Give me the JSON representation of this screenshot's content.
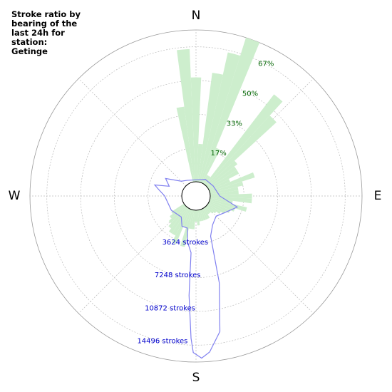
{
  "chart_data": {
    "type": "polar",
    "title_lines": [
      "Stroke ratio by",
      "bearing of the",
      "last 24h for",
      "station:",
      "Getinge"
    ],
    "compass": [
      "N",
      "E",
      "S",
      "W"
    ],
    "ratio_ticks": [
      "17%",
      "33%",
      "50%",
      "67%"
    ],
    "stroke_ticks": [
      "3624 strokes",
      "7248 strokes",
      "10872 strokes",
      "14496 strokes"
    ],
    "colors": {
      "ratio_bars": "#cdeecd",
      "stroke_line": "#8080f0",
      "ratio_tick_text": "#006400",
      "stroke_tick_text": "#0000cc",
      "grid": "#bbbbbb"
    },
    "series": [
      {
        "kind": "bars",
        "unit": "percent",
        "bearing_step_deg": 5,
        "bearings": [
          -10,
          -5,
          0,
          5,
          10,
          15,
          20,
          25,
          30,
          35,
          40,
          45,
          50,
          55,
          60,
          65,
          70,
          75,
          80,
          85,
          90,
          95,
          100,
          105,
          110,
          115,
          120,
          125,
          130,
          135,
          140,
          145,
          150,
          155,
          160,
          165,
          170,
          175,
          180,
          185,
          190,
          195,
          200,
          205,
          210,
          215,
          220,
          225,
          230,
          235
        ],
        "values": [
          40,
          70,
          55,
          20,
          58,
          70,
          80,
          20,
          5,
          5,
          60,
          50,
          20,
          18,
          18,
          12,
          25,
          18,
          15,
          15,
          22,
          22,
          12,
          20,
          14,
          12,
          10,
          8,
          6,
          5,
          4,
          4,
          6,
          6,
          6,
          6,
          6,
          8,
          6,
          10,
          10,
          20,
          10,
          20,
          16,
          16,
          14,
          12,
          10,
          8
        ]
      },
      {
        "kind": "line",
        "unit": "strokes",
        "points": [
          [
            0,
            200
          ],
          [
            30,
            500
          ],
          [
            60,
            600
          ],
          [
            90,
            1000
          ],
          [
            105,
            3000
          ],
          [
            120,
            2000
          ],
          [
            135,
            1500
          ],
          [
            150,
            2000
          ],
          [
            160,
            3000
          ],
          [
            165,
            8000
          ],
          [
            170,
            13000
          ],
          [
            175,
            15000
          ],
          [
            178,
            15600
          ],
          [
            181,
            15000
          ],
          [
            182,
            13500
          ],
          [
            184,
            9000
          ],
          [
            185,
            4500
          ],
          [
            190,
            3500
          ],
          [
            195,
            2000
          ],
          [
            205,
            2000
          ],
          [
            215,
            1200
          ],
          [
            240,
            1500
          ],
          [
            270,
            1800
          ],
          [
            280,
            2500
          ],
          [
            285,
            3000
          ],
          [
            290,
            1500
          ],
          [
            300,
            2200
          ],
          [
            315,
            700
          ],
          [
            330,
            400
          ]
        ]
      }
    ]
  }
}
